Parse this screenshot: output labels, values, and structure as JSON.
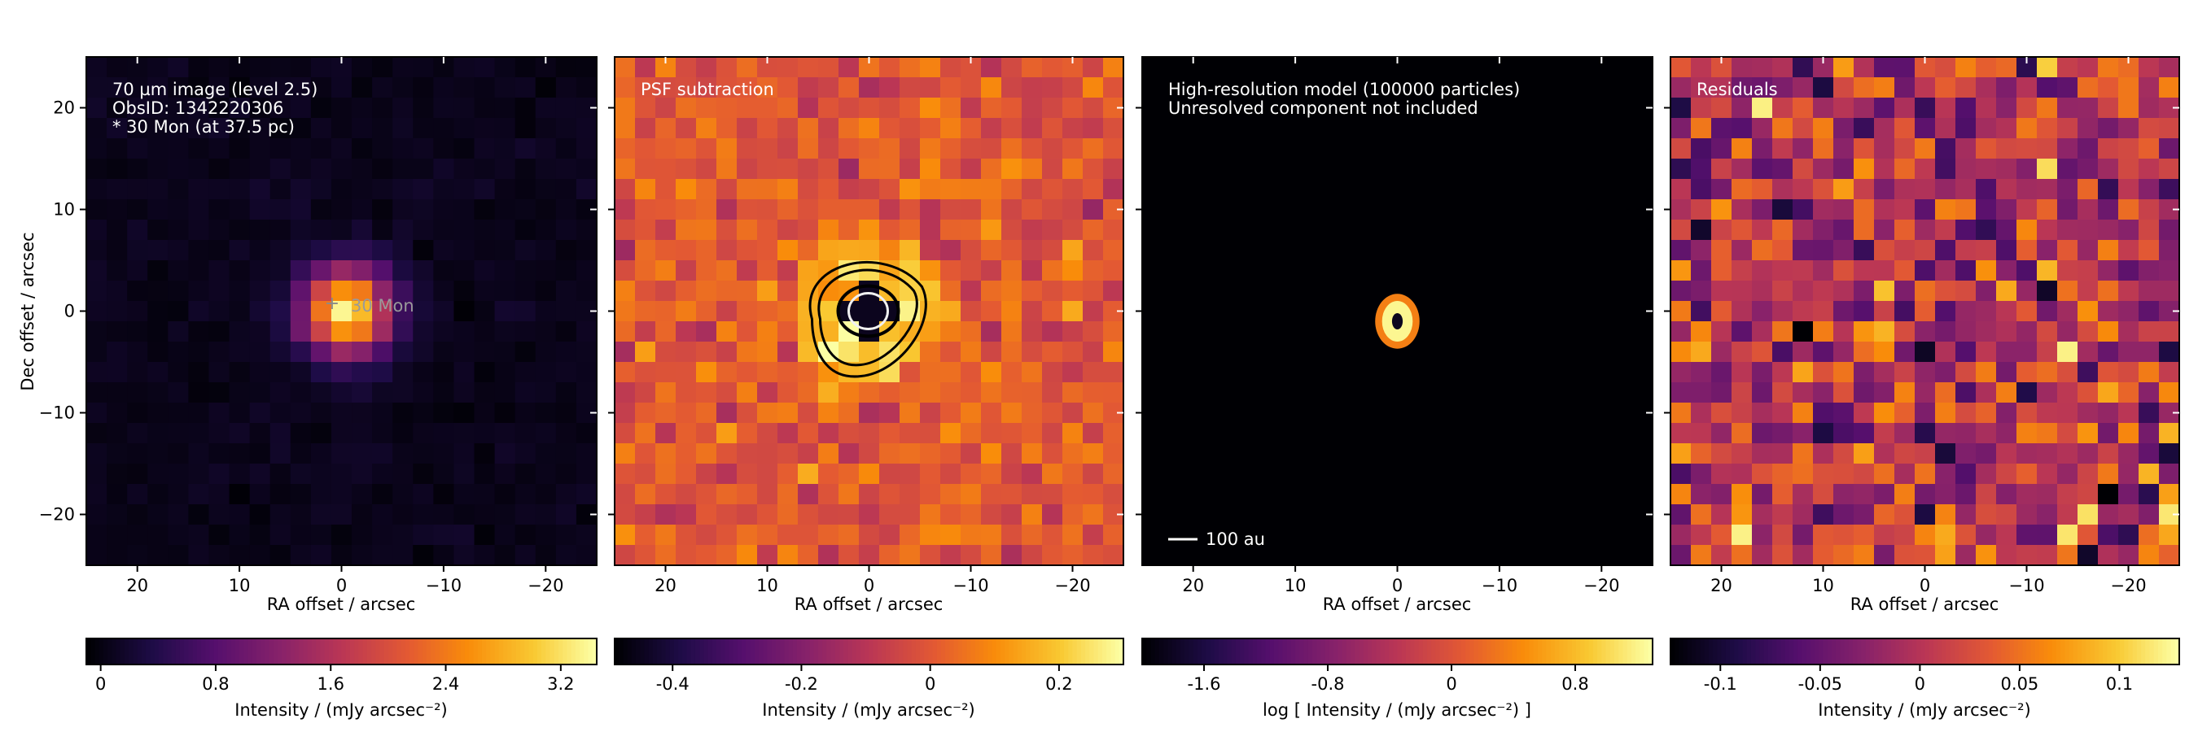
{
  "chart_data": [
    {
      "type": "heatmap",
      "panel_text": [
        "70 µm image (level 2.5)",
        "ObsID: 1342220306",
        "* 30 Mon (at 37.5 pc)"
      ],
      "star_label": "30 Mon",
      "xlabel": "RA offset / arcsec",
      "ylabel": "Dec offset / arcsec",
      "x_ticks": [
        20,
        10,
        0,
        -10,
        -20
      ],
      "y_ticks": [
        20,
        10,
        0,
        -10,
        -20
      ],
      "xlim": [
        25,
        -25
      ],
      "ylim": [
        -25,
        25
      ],
      "colormap": "inferno",
      "colorbar": {
        "label": "Intensity / (mJy arcsec⁻²)",
        "range": [
          -0.1,
          3.45
        ],
        "ticks": [
          0,
          0.8,
          1.6,
          2.4,
          3.2
        ],
        "tick_labels": [
          "0",
          "0.8",
          "1.6",
          "2.4",
          "3.2"
        ]
      },
      "peak_value": 3.3,
      "source_center": [
        -0.5,
        0
      ],
      "source_fwhm": 7
    },
    {
      "type": "heatmap",
      "panel_text": [
        "PSF subtraction"
      ],
      "xlabel": "RA offset / arcsec",
      "x_ticks": [
        20,
        10,
        0,
        -10,
        -20
      ],
      "y_ticks": [
        20,
        10,
        0,
        -10,
        -20
      ],
      "xlim": [
        25,
        -25
      ],
      "ylim": [
        -25,
        25
      ],
      "colormap": "inferno",
      "colorbar": {
        "label": "Intensity / (mJy arcsec⁻²)",
        "range": [
          -0.49,
          0.3
        ],
        "ticks": [
          -0.4,
          -0.2,
          0,
          0.2
        ],
        "tick_labels": [
          "-0.4",
          "-0.2",
          "0",
          "0.2"
        ]
      },
      "background_value": 0.0,
      "ring_peak_value": 0.25,
      "center_value": -0.45,
      "ring_radius_arcsec": 4.5
    },
    {
      "type": "heatmap",
      "panel_text": [
        "High-resolution model (100000 particles)",
        "Unresolved component not included"
      ],
      "scale_bar_label": "100 au",
      "xlabel": "RA offset / arcsec",
      "x_ticks": [
        20,
        10,
        0,
        -10,
        -20
      ],
      "y_ticks": [
        20,
        10,
        0,
        -10,
        -20
      ],
      "xlim": [
        25,
        -25
      ],
      "ylim": [
        -25,
        25
      ],
      "colormap": "inferno",
      "colorbar": {
        "label": "log [ Intensity / (mJy arcsec⁻²) ]",
        "range": [
          -2.0,
          1.3
        ],
        "ticks": [
          -1.6,
          -0.8,
          0,
          0.8
        ],
        "tick_labels": [
          "-1.6",
          "-0.8",
          "0",
          "0.8"
        ]
      },
      "ring_center": [
        0,
        -1
      ],
      "ring_radius_arcsec": [
        1.5,
        2.0
      ]
    },
    {
      "type": "heatmap",
      "panel_text": [
        "Residuals"
      ],
      "xlabel": "RA offset / arcsec",
      "x_ticks": [
        20,
        10,
        0,
        -10,
        -20
      ],
      "y_ticks": [
        20,
        10,
        0,
        -10,
        -20
      ],
      "xlim": [
        25,
        -25
      ],
      "ylim": [
        -25,
        25
      ],
      "colormap": "inferno",
      "colorbar": {
        "label": "Intensity / (mJy arcsec⁻²)",
        "range": [
          -0.125,
          0.13
        ],
        "ticks": [
          -0.1,
          -0.05,
          0,
          0.05,
          0.1
        ],
        "tick_labels": [
          "-0.1",
          "-0.05",
          "0",
          "0.05",
          "0.1"
        ]
      }
    }
  ]
}
